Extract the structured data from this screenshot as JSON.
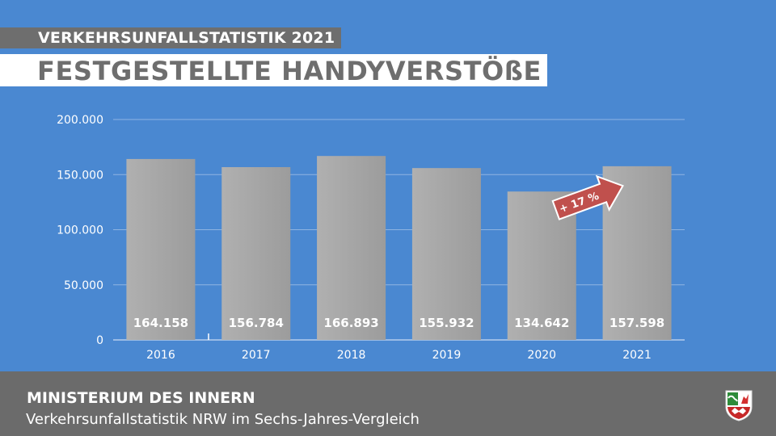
{
  "header": {
    "kicker": "VERKEHRSUNFALLSTATISTIK 2021",
    "headline": "FESTGESTELLTE HANDYVERSTÖßE"
  },
  "footer": {
    "title": "MINISTERIUM DES INNERN",
    "subtitle": "Verkehrsunfallstatistik NRW im Sechs-Jahres-Vergleich",
    "crest_icon": "nrw-coat-of-arms-icon"
  },
  "colors": {
    "background": "#4a88d1",
    "bar": "#a6a6a6",
    "arrow": "#c0504d",
    "footer": "#6b6b6b"
  },
  "chart_data": {
    "type": "bar",
    "title": "",
    "xlabel": "",
    "ylabel": "",
    "categories": [
      "2016",
      "2017",
      "2018",
      "2019",
      "2020",
      "2021"
    ],
    "values": [
      164158,
      156784,
      166893,
      155932,
      134642,
      157598
    ],
    "value_labels": [
      "164.158",
      "156.784",
      "166.893",
      "155.932",
      "134.642",
      "157.598"
    ],
    "yticks": [
      0,
      50000,
      100000,
      150000,
      200000
    ],
    "ytick_labels": [
      "0",
      "50.000",
      "100.000",
      "150.000",
      "200.000"
    ],
    "ylim": [
      0,
      200000
    ],
    "grid": true,
    "legend": "none",
    "annotation": {
      "text": "+ 17 %",
      "from_category": "2020",
      "to_category": "2021"
    }
  }
}
